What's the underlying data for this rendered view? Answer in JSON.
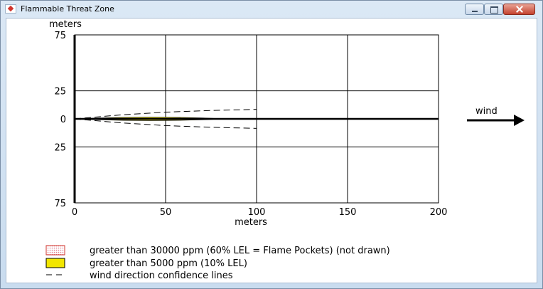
{
  "window": {
    "title": "Flammable Threat Zone",
    "icon": "app-icon"
  },
  "titlebar_buttons": [
    {
      "name": "minimize-button",
      "icon": "minimize-icon"
    },
    {
      "name": "maximize-button",
      "icon": "maximize-icon"
    },
    {
      "name": "close-button",
      "icon": "close-icon"
    }
  ],
  "chart_data": {
    "type": "line",
    "ylabel": "meters",
    "xlabel": "meters",
    "x_ticks": [
      "0",
      "50",
      "100",
      "150",
      "200"
    ],
    "y_ticks_top": [
      "75",
      "25",
      "0",
      "25",
      "75"
    ],
    "x_range": [
      0,
      200
    ],
    "y_range": [
      -75,
      75
    ],
    "grid": true,
    "series": [
      {
        "name": "greater than 5000 ppm (10% LEL)",
        "color": "#f2e600",
        "x_start": 0,
        "x_end": 83,
        "max_half_width": 1.5
      },
      {
        "name": "wind direction confidence lines",
        "style": "dashed",
        "points": [
          [
            0,
            0
          ],
          [
            25,
            3.5
          ],
          [
            50,
            6
          ],
          [
            75,
            7.5
          ],
          [
            100,
            8.5
          ]
        ]
      }
    ],
    "wind_label": "wind"
  },
  "legend": [
    {
      "label": "greater than 30000 ppm (60% LEL = Flame Pockets) (not drawn)",
      "swatch": "dotted-pink",
      "color": "#e07a8a"
    },
    {
      "label": "greater than 5000 ppm (10% LEL)",
      "swatch": "yellow",
      "color": "#f2e600"
    },
    {
      "label": "wind direction confidence lines",
      "swatch": "dashed"
    }
  ]
}
